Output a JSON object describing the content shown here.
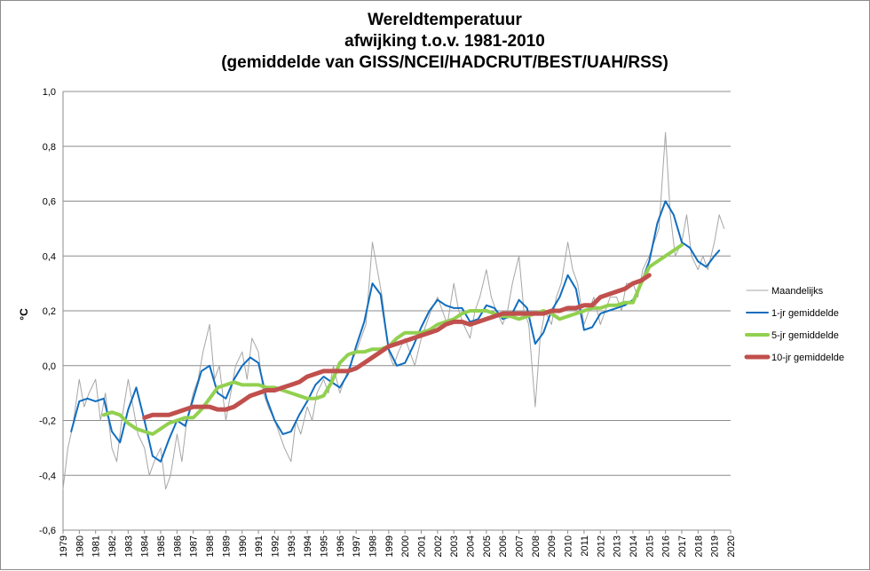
{
  "chart_data": {
    "type": "line",
    "title": "Wereldtemperatuur",
    "subtitle": [
      "afwijking t.o.v. 1981-2010",
      "(gemiddelde van GISS/NCEI/HADCRUT/BEST/UAH/RSS)"
    ],
    "ylabel": "°C",
    "xlabel": "",
    "xlim": [
      1979,
      2020
    ],
    "ylim": [
      -0.6,
      1.0
    ],
    "yticks": [
      "-0,6",
      "-0,4",
      "-0,2",
      "0,0",
      "0,2",
      "0,4",
      "0,6",
      "0,8",
      "1,0"
    ],
    "xticks": [
      "1979",
      "1980",
      "1981",
      "1982",
      "1983",
      "1984",
      "1985",
      "1986",
      "1987",
      "1988",
      "1989",
      "1990",
      "1991",
      "1992",
      "1993",
      "1994",
      "1995",
      "1996",
      "1997",
      "1998",
      "1999",
      "2000",
      "2001",
      "2002",
      "2003",
      "2004",
      "2005",
      "2006",
      "2007",
      "2008",
      "2009",
      "2010",
      "2011",
      "2012",
      "2013",
      "2014",
      "2015",
      "2016",
      "2017",
      "2018",
      "2019",
      "2020"
    ],
    "grid": true,
    "legend_position": "right",
    "series": [
      {
        "name": "Maandelijks",
        "color": "#a6a6a6",
        "x": [
          1979.0,
          1979.3,
          1979.6,
          1980.0,
          1980.3,
          1980.6,
          1981.0,
          1981.3,
          1981.6,
          1982.0,
          1982.3,
          1982.6,
          1983.0,
          1983.3,
          1983.6,
          1984.0,
          1984.3,
          1984.6,
          1985.0,
          1985.3,
          1985.6,
          1986.0,
          1986.3,
          1986.6,
          1987.0,
          1987.3,
          1987.6,
          1988.0,
          1988.3,
          1988.6,
          1989.0,
          1989.3,
          1989.6,
          1990.0,
          1990.3,
          1990.6,
          1991.0,
          1991.3,
          1991.6,
          1992.0,
          1992.3,
          1992.6,
          1993.0,
          1993.3,
          1993.6,
          1994.0,
          1994.3,
          1994.6,
          1995.0,
          1995.3,
          1995.6,
          1996.0,
          1996.3,
          1996.6,
          1997.0,
          1997.3,
          1997.6,
          1998.0,
          1998.3,
          1998.6,
          1999.0,
          1999.3,
          1999.6,
          2000.0,
          2000.3,
          2000.6,
          2001.0,
          2001.3,
          2001.6,
          2002.0,
          2002.3,
          2002.6,
          2003.0,
          2003.3,
          2003.6,
          2004.0,
          2004.3,
          2004.6,
          2005.0,
          2005.3,
          2005.6,
          2006.0,
          2006.3,
          2006.6,
          2007.0,
          2007.3,
          2007.6,
          2008.0,
          2008.3,
          2008.6,
          2009.0,
          2009.3,
          2009.6,
          2010.0,
          2010.3,
          2010.6,
          2011.0,
          2011.3,
          2011.6,
          2012.0,
          2012.3,
          2012.6,
          2013.0,
          2013.3,
          2013.6,
          2014.0,
          2014.3,
          2014.6,
          2015.0,
          2015.3,
          2015.6,
          2016.0,
          2016.3,
          2016.6,
          2017.0,
          2017.3,
          2017.6,
          2018.0,
          2018.3,
          2018.6,
          2019.0,
          2019.3,
          2019.6
        ],
        "values": [
          -0.45,
          -0.3,
          -0.22,
          -0.05,
          -0.15,
          -0.1,
          -0.05,
          -0.2,
          -0.1,
          -0.3,
          -0.35,
          -0.2,
          -0.05,
          -0.15,
          -0.25,
          -0.3,
          -0.4,
          -0.35,
          -0.3,
          -0.45,
          -0.4,
          -0.25,
          -0.35,
          -0.2,
          -0.1,
          -0.05,
          0.05,
          0.15,
          -0.05,
          0.0,
          -0.2,
          -0.1,
          0.0,
          0.05,
          -0.05,
          0.1,
          0.05,
          -0.1,
          -0.15,
          -0.2,
          -0.25,
          -0.3,
          -0.35,
          -0.2,
          -0.25,
          -0.15,
          -0.2,
          -0.1,
          -0.05,
          -0.1,
          0.0,
          -0.1,
          -0.05,
          0.0,
          0.05,
          0.1,
          0.15,
          0.45,
          0.35,
          0.25,
          0.05,
          0.0,
          0.05,
          0.1,
          0.05,
          0.0,
          0.1,
          0.15,
          0.2,
          0.25,
          0.2,
          0.15,
          0.3,
          0.2,
          0.15,
          0.1,
          0.2,
          0.25,
          0.35,
          0.25,
          0.2,
          0.15,
          0.2,
          0.3,
          0.4,
          0.2,
          0.15,
          -0.15,
          0.1,
          0.2,
          0.15,
          0.25,
          0.3,
          0.45,
          0.35,
          0.3,
          0.15,
          0.2,
          0.25,
          0.15,
          0.2,
          0.25,
          0.25,
          0.2,
          0.3,
          0.3,
          0.25,
          0.35,
          0.4,
          0.45,
          0.5,
          0.85,
          0.55,
          0.4,
          0.45,
          0.55,
          0.4,
          0.35,
          0.4,
          0.35,
          0.45,
          0.55,
          0.5
        ]
      },
      {
        "name": "1-jr gemiddelde",
        "color": "#0f6dbf",
        "x": [
          1979.5,
          1980.0,
          1980.5,
          1981.0,
          1981.5,
          1982.0,
          1982.5,
          1983.0,
          1983.5,
          1984.0,
          1984.5,
          1985.0,
          1985.5,
          1986.0,
          1986.5,
          1987.0,
          1987.5,
          1988.0,
          1988.5,
          1989.0,
          1989.5,
          1990.0,
          1990.5,
          1991.0,
          1991.5,
          1992.0,
          1992.5,
          1993.0,
          1993.5,
          1994.0,
          1994.5,
          1995.0,
          1995.5,
          1996.0,
          1996.5,
          1997.0,
          1997.5,
          1998.0,
          1998.5,
          1999.0,
          1999.5,
          2000.0,
          2000.5,
          2001.0,
          2001.5,
          2002.0,
          2002.5,
          2003.0,
          2003.5,
          2004.0,
          2004.5,
          2005.0,
          2005.5,
          2006.0,
          2006.5,
          2007.0,
          2007.5,
          2008.0,
          2008.5,
          2009.0,
          2009.5,
          2010.0,
          2010.5,
          2011.0,
          2011.5,
          2012.0,
          2012.5,
          2013.0,
          2013.5,
          2014.0,
          2014.5,
          2015.0,
          2015.5,
          2016.0,
          2016.5,
          2017.0,
          2017.5,
          2018.0,
          2018.5,
          2019.0,
          2019.3
        ],
        "values": [
          -0.24,
          -0.13,
          -0.12,
          -0.13,
          -0.12,
          -0.24,
          -0.28,
          -0.16,
          -0.08,
          -0.2,
          -0.33,
          -0.35,
          -0.27,
          -0.2,
          -0.22,
          -0.12,
          -0.02,
          0.0,
          -0.1,
          -0.12,
          -0.05,
          0.0,
          0.03,
          0.01,
          -0.12,
          -0.2,
          -0.25,
          -0.24,
          -0.18,
          -0.13,
          -0.07,
          -0.04,
          -0.06,
          -0.08,
          -0.03,
          0.07,
          0.16,
          0.3,
          0.26,
          0.06,
          0.0,
          0.01,
          0.07,
          0.14,
          0.2,
          0.24,
          0.22,
          0.21,
          0.21,
          0.16,
          0.17,
          0.22,
          0.21,
          0.17,
          0.18,
          0.24,
          0.21,
          0.08,
          0.12,
          0.2,
          0.25,
          0.33,
          0.28,
          0.13,
          0.14,
          0.19,
          0.2,
          0.21,
          0.22,
          0.24,
          0.3,
          0.38,
          0.52,
          0.6,
          0.55,
          0.45,
          0.43,
          0.38,
          0.36,
          0.4,
          0.42
        ]
      },
      {
        "name": "5-jr gemiddelde",
        "color": "#92d050",
        "x": [
          1981.5,
          1982.0,
          1982.5,
          1983.0,
          1983.5,
          1984.0,
          1984.5,
          1985.0,
          1985.5,
          1986.0,
          1986.5,
          1987.0,
          1987.5,
          1988.0,
          1988.5,
          1989.0,
          1989.5,
          1990.0,
          1990.5,
          1991.0,
          1991.5,
          1992.0,
          1992.5,
          1993.0,
          1993.5,
          1994.0,
          1994.5,
          1995.0,
          1995.5,
          1996.0,
          1996.5,
          1997.0,
          1997.5,
          1998.0,
          1998.5,
          1999.0,
          1999.5,
          2000.0,
          2000.5,
          2001.0,
          2001.5,
          2002.0,
          2002.5,
          2003.0,
          2003.5,
          2004.0,
          2004.5,
          2005.0,
          2005.5,
          2006.0,
          2006.5,
          2007.0,
          2007.5,
          2008.0,
          2008.5,
          2009.0,
          2009.5,
          2010.0,
          2010.5,
          2011.0,
          2011.5,
          2012.0,
          2012.5,
          2013.0,
          2013.5,
          2014.0,
          2014.5,
          2015.0,
          2015.5,
          2016.0,
          2016.5,
          2017.0
        ],
        "values": [
          -0.18,
          -0.17,
          -0.18,
          -0.21,
          -0.23,
          -0.24,
          -0.25,
          -0.23,
          -0.21,
          -0.2,
          -0.19,
          -0.19,
          -0.16,
          -0.12,
          -0.08,
          -0.07,
          -0.06,
          -0.07,
          -0.07,
          -0.07,
          -0.08,
          -0.08,
          -0.09,
          -0.1,
          -0.11,
          -0.12,
          -0.12,
          -0.11,
          -0.06,
          0.01,
          0.04,
          0.05,
          0.05,
          0.06,
          0.06,
          0.07,
          0.1,
          0.12,
          0.12,
          0.12,
          0.13,
          0.15,
          0.16,
          0.17,
          0.19,
          0.2,
          0.2,
          0.2,
          0.19,
          0.18,
          0.18,
          0.17,
          0.18,
          0.19,
          0.2,
          0.19,
          0.17,
          0.18,
          0.19,
          0.2,
          0.21,
          0.21,
          0.22,
          0.22,
          0.23,
          0.23,
          0.3,
          0.36,
          0.38,
          0.4,
          0.42,
          0.44
        ]
      },
      {
        "name": "10-jr gemiddelde",
        "color": "#c0504d",
        "x": [
          1984.0,
          1984.5,
          1985.0,
          1985.5,
          1986.0,
          1986.5,
          1987.0,
          1987.5,
          1988.0,
          1988.5,
          1989.0,
          1989.5,
          1990.0,
          1990.5,
          1991.0,
          1991.5,
          1992.0,
          1992.5,
          1993.0,
          1993.5,
          1994.0,
          1994.5,
          1995.0,
          1995.5,
          1996.0,
          1996.5,
          1997.0,
          1997.5,
          1998.0,
          1998.5,
          1999.0,
          1999.5,
          2000.0,
          2000.5,
          2001.0,
          2001.5,
          2002.0,
          2002.5,
          2003.0,
          2003.5,
          2004.0,
          2004.5,
          2005.0,
          2005.5,
          2006.0,
          2006.5,
          2007.0,
          2007.5,
          2008.0,
          2008.5,
          2009.0,
          2009.5,
          2010.0,
          2010.5,
          2011.0,
          2011.5,
          2012.0,
          2012.5,
          2013.0,
          2013.5,
          2014.0,
          2014.5,
          2015.0
        ],
        "values": [
          -0.19,
          -0.18,
          -0.18,
          -0.18,
          -0.17,
          -0.16,
          -0.15,
          -0.15,
          -0.15,
          -0.16,
          -0.16,
          -0.15,
          -0.13,
          -0.11,
          -0.1,
          -0.09,
          -0.09,
          -0.08,
          -0.07,
          -0.06,
          -0.04,
          -0.03,
          -0.02,
          -0.02,
          -0.02,
          -0.02,
          -0.01,
          0.01,
          0.03,
          0.05,
          0.07,
          0.08,
          0.09,
          0.1,
          0.11,
          0.12,
          0.13,
          0.15,
          0.16,
          0.16,
          0.15,
          0.16,
          0.17,
          0.18,
          0.19,
          0.19,
          0.19,
          0.19,
          0.19,
          0.19,
          0.2,
          0.2,
          0.21,
          0.21,
          0.22,
          0.22,
          0.25,
          0.26,
          0.27,
          0.28,
          0.3,
          0.31,
          0.33
        ]
      }
    ]
  }
}
